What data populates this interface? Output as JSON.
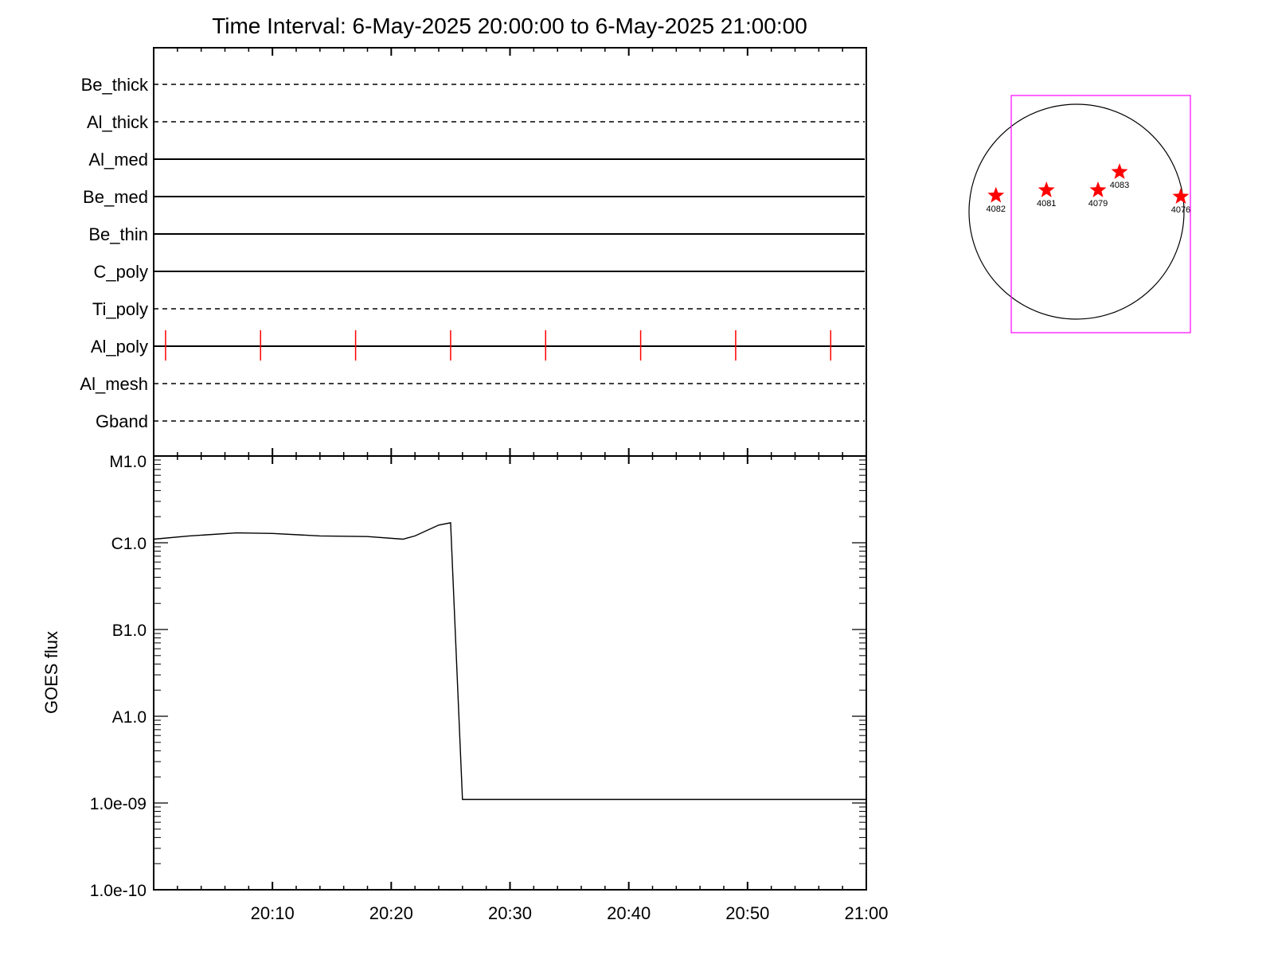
{
  "chart_data": [
    {
      "type": "line",
      "title": "Time Interval:  6-May-2025 20:00:00 to  6-May-2025 21:00:00",
      "panel": "xrt-filter-coverage",
      "xlim": [
        "20:00",
        "21:00"
      ],
      "filters": [
        {
          "name": "Be_thick",
          "style": "dashed"
        },
        {
          "name": "Al_thick",
          "style": "dashed"
        },
        {
          "name": "Al_med",
          "style": "solid"
        },
        {
          "name": "Be_med",
          "style": "solid"
        },
        {
          "name": "Be_thin",
          "style": "solid"
        },
        {
          "name": "C_poly",
          "style": "solid"
        },
        {
          "name": "Ti_poly",
          "style": "dashed"
        },
        {
          "name": "Al_poly",
          "style": "solid"
        },
        {
          "name": "Al_mesh",
          "style": "dashed"
        },
        {
          "name": "Gband",
          "style": "dashed"
        }
      ],
      "observation_marks": {
        "filter": "Al_poly",
        "color": "#ff0000",
        "times": [
          "20:01",
          "20:09",
          "20:17",
          "20:25",
          "20:33",
          "20:41",
          "20:49",
          "20:57"
        ]
      }
    },
    {
      "type": "line",
      "panel": "goes-flux",
      "ylabel": "GOES flux",
      "yscale": "log",
      "ylim": [
        1e-10,
        1e-05
      ],
      "ytick_labels": [
        "1.0e-10",
        "1.0e-09",
        "A1.0",
        "B1.0",
        "C1.0",
        "M1.0"
      ],
      "xtick_labels": [
        "20:10",
        "20:20",
        "20:30",
        "20:40",
        "20:50",
        "21:00"
      ],
      "xlim": [
        "20:00",
        "21:00"
      ],
      "series": [
        {
          "color": "#000000",
          "points": [
            [
              "20:00",
              1.1e-06
            ],
            [
              "20:03",
              1.2e-06
            ],
            [
              "20:07",
              1.3e-06
            ],
            [
              "20:10",
              1.28e-06
            ],
            [
              "20:14",
              1.2e-06
            ],
            [
              "20:18",
              1.18e-06
            ],
            [
              "20:21",
              1.1e-06
            ],
            [
              "20:22",
              1.2e-06
            ],
            [
              "20:24",
              1.6e-06
            ],
            [
              "20:25",
              1.7e-06
            ],
            [
              "20:26",
              1.1e-09
            ],
            [
              "20:30",
              1.1e-09
            ],
            [
              "20:40",
              1.1e-09
            ],
            [
              "20:50",
              1.1e-09
            ],
            [
              "21:00",
              1.1e-09
            ]
          ]
        }
      ]
    },
    {
      "type": "scatter",
      "panel": "solar-disk-map",
      "frame_color": "#ff00ff",
      "marker_color": "#ff0000",
      "regions": [
        {
          "label": "4082",
          "x": -0.75,
          "y": 0.15
        },
        {
          "label": "4081",
          "x": -0.28,
          "y": 0.2
        },
        {
          "label": "4079",
          "x": 0.2,
          "y": 0.2
        },
        {
          "label": "4083",
          "x": 0.4,
          "y": 0.37
        },
        {
          "label": "4076",
          "x": 0.97,
          "y": 0.14
        }
      ]
    }
  ]
}
